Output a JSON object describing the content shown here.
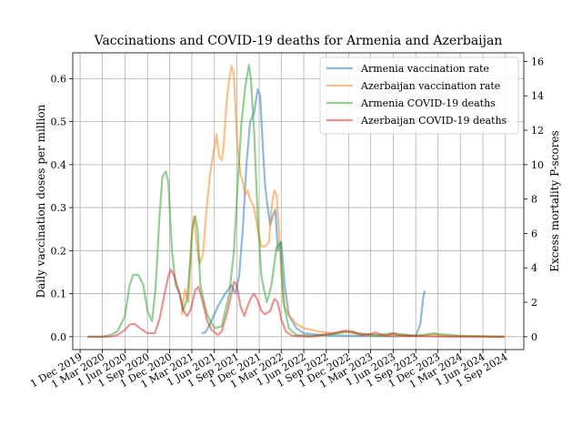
{
  "chart_data": {
    "type": "line",
    "title": "Vaccinations and COVID-19 deaths for Armenia and Azerbaijan",
    "ylabel_left": "Daily vaccination doses per million",
    "ylabel_right": "Excess mortality P-scores",
    "ylim_left": [
      -0.03,
      0.66
    ],
    "ylim_right": [
      -0.75,
      16.5
    ],
    "xlim": [
      "2019-11-01",
      "2024-11-15"
    ],
    "yticks_left": [
      "0.0",
      "0.1",
      "0.2",
      "0.3",
      "0.4",
      "0.5",
      "0.6"
    ],
    "yticks_right": [
      "0",
      "2",
      "4",
      "6",
      "8",
      "10",
      "12",
      "14",
      "16"
    ],
    "xticks": [
      {
        "date": "2019-12-01",
        "label": "1 Dec 2019"
      },
      {
        "date": "2020-03-01",
        "label": "1 Mar 2020"
      },
      {
        "date": "2020-06-01",
        "label": "1 Jun 2020"
      },
      {
        "date": "2020-09-01",
        "label": "1 Sep 2020"
      },
      {
        "date": "2020-12-01",
        "label": "1 Dec 2020"
      },
      {
        "date": "2021-03-01",
        "label": "1 Mar 2021"
      },
      {
        "date": "2021-06-01",
        "label": "1 Jun 2021"
      },
      {
        "date": "2021-09-01",
        "label": "1 Sep 2021"
      },
      {
        "date": "2021-12-01",
        "label": "1 Dec 2021"
      },
      {
        "date": "2022-03-01",
        "label": "1 Mar 2022"
      },
      {
        "date": "2022-06-01",
        "label": "1 Jun 2022"
      },
      {
        "date": "2022-09-01",
        "label": "1 Sep 2022"
      },
      {
        "date": "2022-12-01",
        "label": "1 Dec 2022"
      },
      {
        "date": "2023-03-01",
        "label": "1 Mar 2023"
      },
      {
        "date": "2023-06-01",
        "label": "1 Jun 2023"
      },
      {
        "date": "2023-09-01",
        "label": "1 Sep 2023"
      },
      {
        "date": "2023-12-01",
        "label": "1 Dec 2023"
      },
      {
        "date": "2024-03-01",
        "label": "1 Mar 2024"
      },
      {
        "date": "2024-06-01",
        "label": "1 Jun 2024"
      },
      {
        "date": "2024-09-01",
        "label": "1 Sep 2024"
      }
    ],
    "grid": true,
    "legend_position": "top-right",
    "series": [
      {
        "name": "Armenia vaccination rate",
        "axis": "left",
        "color": "#1f77b4",
        "points": [
          [
            "2021-04-10",
            0.008
          ],
          [
            "2021-04-25",
            0.01
          ],
          [
            "2021-05-15",
            0.03
          ],
          [
            "2021-06-15",
            0.07
          ],
          [
            "2021-07-15",
            0.1
          ],
          [
            "2021-08-10",
            0.12
          ],
          [
            "2021-08-25",
            0.1
          ],
          [
            "2021-09-10",
            0.14
          ],
          [
            "2021-09-25",
            0.25
          ],
          [
            "2021-10-10",
            0.4
          ],
          [
            "2021-10-25",
            0.5
          ],
          [
            "2021-11-10",
            0.52
          ],
          [
            "2021-11-25",
            0.575
          ],
          [
            "2021-12-05",
            0.56
          ],
          [
            "2021-12-15",
            0.45
          ],
          [
            "2021-12-25",
            0.35
          ],
          [
            "2022-01-05",
            0.3
          ],
          [
            "2022-01-15",
            0.26
          ],
          [
            "2022-01-25",
            0.28
          ],
          [
            "2022-02-05",
            0.295
          ],
          [
            "2022-02-15",
            0.2
          ],
          [
            "2022-03-01",
            0.22
          ],
          [
            "2022-03-15",
            0.12
          ],
          [
            "2022-04-01",
            0.05
          ],
          [
            "2022-05-01",
            0.02
          ],
          [
            "2022-06-01",
            0.008
          ],
          [
            "2022-09-01",
            0.003
          ],
          [
            "2023-01-01",
            0.002
          ],
          [
            "2023-06-01",
            0.001
          ],
          [
            "2023-09-01",
            0.002
          ],
          [
            "2023-09-20",
            0.03
          ],
          [
            "2023-10-01",
            0.09
          ],
          [
            "2023-10-08",
            0.107
          ]
        ]
      },
      {
        "name": "Azerbaijan vaccination rate",
        "axis": "left",
        "color": "#ff7f0e",
        "points": [
          [
            "2021-01-18",
            0.05
          ],
          [
            "2021-02-01",
            0.11
          ],
          [
            "2021-02-15",
            0.08
          ],
          [
            "2021-03-01",
            0.24
          ],
          [
            "2021-03-10",
            0.28
          ],
          [
            "2021-03-20",
            0.22
          ],
          [
            "2021-04-01",
            0.17
          ],
          [
            "2021-04-15",
            0.19
          ],
          [
            "2021-05-01",
            0.3
          ],
          [
            "2021-05-15",
            0.38
          ],
          [
            "2021-06-01",
            0.44
          ],
          [
            "2021-06-10",
            0.47
          ],
          [
            "2021-06-20",
            0.42
          ],
          [
            "2021-07-01",
            0.41
          ],
          [
            "2021-07-10",
            0.45
          ],
          [
            "2021-07-20",
            0.54
          ],
          [
            "2021-08-01",
            0.6
          ],
          [
            "2021-08-10",
            0.63
          ],
          [
            "2021-08-20",
            0.61
          ],
          [
            "2021-09-01",
            0.46
          ],
          [
            "2021-09-15",
            0.38
          ],
          [
            "2021-09-25",
            0.36
          ],
          [
            "2021-10-05",
            0.33
          ],
          [
            "2021-10-15",
            0.34
          ],
          [
            "2021-10-25",
            0.32
          ],
          [
            "2021-11-10",
            0.3
          ],
          [
            "2021-11-25",
            0.25
          ],
          [
            "2021-12-10",
            0.21
          ],
          [
            "2021-12-25",
            0.21
          ],
          [
            "2022-01-10",
            0.22
          ],
          [
            "2022-01-20",
            0.3
          ],
          [
            "2022-02-01",
            0.34
          ],
          [
            "2022-02-10",
            0.33
          ],
          [
            "2022-02-20",
            0.24
          ],
          [
            "2022-03-01",
            0.15
          ],
          [
            "2022-03-15",
            0.07
          ],
          [
            "2022-04-01",
            0.05
          ],
          [
            "2022-05-01",
            0.03
          ],
          [
            "2022-06-01",
            0.02
          ],
          [
            "2022-08-01",
            0.012
          ],
          [
            "2022-10-01",
            0.008
          ],
          [
            "2022-11-01",
            0.012
          ],
          [
            "2022-12-01",
            0.01
          ],
          [
            "2023-02-01",
            0.005
          ],
          [
            "2023-04-01",
            0.003
          ],
          [
            "2023-07-01",
            0.002
          ],
          [
            "2023-10-01",
            0.002
          ],
          [
            "2023-11-20",
            0.006
          ],
          [
            "2023-12-10",
            0.003
          ],
          [
            "2024-03-01",
            0.001
          ],
          [
            "2024-08-28",
            0.0
          ]
        ]
      },
      {
        "name": "Armenia COVID-19 deaths",
        "axis": "right",
        "color": "#2ca02c",
        "points": [
          [
            "2020-01-01",
            0.0
          ],
          [
            "2020-03-01",
            0.0
          ],
          [
            "2020-04-01",
            0.1
          ],
          [
            "2020-05-01",
            0.3
          ],
          [
            "2020-06-01",
            1.2
          ],
          [
            "2020-06-20",
            3.0
          ],
          [
            "2020-07-05",
            3.6
          ],
          [
            "2020-07-25",
            3.6
          ],
          [
            "2020-08-15",
            3.0
          ],
          [
            "2020-09-01",
            1.5
          ],
          [
            "2020-09-20",
            0.9
          ],
          [
            "2020-10-05",
            3.0
          ],
          [
            "2020-10-20",
            7.0
          ],
          [
            "2020-11-01",
            9.3
          ],
          [
            "2020-11-15",
            9.6
          ],
          [
            "2020-11-25",
            9.0
          ],
          [
            "2020-12-10",
            5.0
          ],
          [
            "2020-12-25",
            3.0
          ],
          [
            "2021-01-10",
            2.5
          ],
          [
            "2021-01-25",
            1.5
          ],
          [
            "2021-02-10",
            2.2
          ],
          [
            "2021-02-20",
            4.0
          ],
          [
            "2021-03-05",
            6.5
          ],
          [
            "2021-03-15",
            7.0
          ],
          [
            "2021-03-25",
            6.2
          ],
          [
            "2021-04-05",
            3.0
          ],
          [
            "2021-04-20",
            2.0
          ],
          [
            "2021-05-05",
            1.2
          ],
          [
            "2021-06-01",
            0.5
          ],
          [
            "2021-07-01",
            0.6
          ],
          [
            "2021-08-01",
            2.5
          ],
          [
            "2021-08-20",
            5.0
          ],
          [
            "2021-09-05",
            9.0
          ],
          [
            "2021-09-20",
            12.5
          ],
          [
            "2021-10-05",
            14.5
          ],
          [
            "2021-10-20",
            15.8
          ],
          [
            "2021-10-28",
            15.0
          ],
          [
            "2021-11-10",
            12.0
          ],
          [
            "2021-11-25",
            7.0
          ],
          [
            "2021-12-10",
            3.5
          ],
          [
            "2022-01-01",
            2.0
          ],
          [
            "2022-01-20",
            3.0
          ],
          [
            "2022-02-10",
            5.2
          ],
          [
            "2022-02-25",
            5.5
          ],
          [
            "2022-03-10",
            2.0
          ],
          [
            "2022-04-01",
            0.5
          ],
          [
            "2022-05-01",
            0.1
          ],
          [
            "2022-07-01",
            0.05
          ],
          [
            "2022-10-01",
            0.15
          ],
          [
            "2022-12-01",
            0.3
          ],
          [
            "2023-01-01",
            0.2
          ],
          [
            "2023-04-01",
            0.1
          ],
          [
            "2023-06-01",
            0.2
          ],
          [
            "2023-09-01",
            0.05
          ],
          [
            "2023-11-15",
            0.2
          ],
          [
            "2023-12-01",
            0.15
          ],
          [
            "2024-03-01",
            0.05
          ],
          [
            "2024-08-28",
            0.0
          ]
        ]
      },
      {
        "name": "Azerbaijan COVID-19 deaths",
        "axis": "right",
        "color": "#d62728",
        "points": [
          [
            "2020-01-01",
            0.0
          ],
          [
            "2020-04-01",
            0.0
          ],
          [
            "2020-05-01",
            0.1
          ],
          [
            "2020-06-01",
            0.4
          ],
          [
            "2020-06-20",
            0.7
          ],
          [
            "2020-07-10",
            0.75
          ],
          [
            "2020-08-01",
            0.5
          ],
          [
            "2020-09-01",
            0.2
          ],
          [
            "2020-10-01",
            0.2
          ],
          [
            "2020-10-20",
            1.0
          ],
          [
            "2020-11-10",
            2.5
          ],
          [
            "2020-11-25",
            3.5
          ],
          [
            "2020-12-05",
            3.9
          ],
          [
            "2020-12-20",
            3.5
          ],
          [
            "2021-01-10",
            2.5
          ],
          [
            "2021-01-25",
            1.5
          ],
          [
            "2021-02-10",
            1.2
          ],
          [
            "2021-02-25",
            1.6
          ],
          [
            "2021-03-15",
            2.7
          ],
          [
            "2021-03-28",
            2.9
          ],
          [
            "2021-04-15",
            2.0
          ],
          [
            "2021-05-01",
            1.0
          ],
          [
            "2021-05-20",
            0.4
          ],
          [
            "2021-06-15",
            0.1
          ],
          [
            "2021-07-01",
            0.3
          ],
          [
            "2021-07-25",
            1.5
          ],
          [
            "2021-08-10",
            2.5
          ],
          [
            "2021-08-20",
            3.2
          ],
          [
            "2021-09-01",
            3.0
          ],
          [
            "2021-09-15",
            1.8
          ],
          [
            "2021-10-01",
            1.2
          ],
          [
            "2021-10-15",
            1.8
          ],
          [
            "2021-10-30",
            2.3
          ],
          [
            "2021-11-10",
            2.5
          ],
          [
            "2021-11-25",
            2.1
          ],
          [
            "2021-12-10",
            1.5
          ],
          [
            "2021-12-25",
            1.3
          ],
          [
            "2022-01-15",
            1.5
          ],
          [
            "2022-02-01",
            2.2
          ],
          [
            "2022-02-15",
            2.0
          ],
          [
            "2022-03-01",
            1.0
          ],
          [
            "2022-03-20",
            0.3
          ],
          [
            "2022-04-15",
            0.05
          ],
          [
            "2022-07-01",
            0.0
          ],
          [
            "2022-10-01",
            0.2
          ],
          [
            "2022-11-15",
            0.35
          ],
          [
            "2022-12-20",
            0.3
          ],
          [
            "2023-01-20",
            0.1
          ],
          [
            "2023-03-01",
            0.15
          ],
          [
            "2023-03-20",
            0.25
          ],
          [
            "2023-05-01",
            0.05
          ],
          [
            "2023-06-01",
            0.2
          ],
          [
            "2023-06-20",
            0.1
          ],
          [
            "2023-08-01",
            0.05
          ],
          [
            "2024-01-01",
            0.0
          ],
          [
            "2024-08-28",
            0.0
          ]
        ]
      }
    ]
  }
}
